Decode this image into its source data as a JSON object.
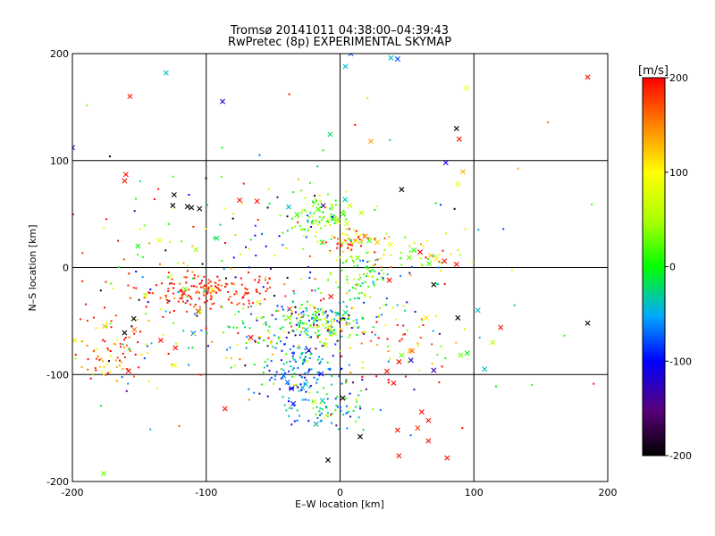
{
  "chart_data": {
    "type": "scatter",
    "title": "Tromsø 20141011 04:38:00–04:39:43",
    "subtitle": "RwPretec (8p) EXPERIMENTAL SKYMAP",
    "xlabel": "E–W location [km]",
    "ylabel": "N–S location [km]",
    "xlim": [
      -200,
      200
    ],
    "ylim": [
      -200,
      200
    ],
    "xticks": [
      -200,
      -100,
      0,
      100,
      200
    ],
    "yticks": [
      -200,
      -100,
      0,
      100,
      200
    ],
    "grid": true,
    "colorbar": {
      "label": "[m/s]",
      "range": [
        -200,
        200
      ],
      "ticks": [
        200,
        100,
        0,
        -100,
        -200
      ]
    },
    "marker_types": [
      "dot",
      "cross"
    ],
    "clusters": [
      {
        "cx": -95,
        "cy": -22,
        "sx": 28,
        "sy": 8,
        "n": 170,
        "v": 185,
        "vs": 20,
        "cross": 0.02
      },
      {
        "cx": -175,
        "cy": -85,
        "sx": 15,
        "sy": 15,
        "n": 70,
        "v": 160,
        "vs": 50,
        "cross": 0.05
      },
      {
        "cx": -55,
        "cy": -60,
        "sx": 35,
        "sy": 15,
        "n": 110,
        "v": 0,
        "vs": 100,
        "cross": 0.02
      },
      {
        "cx": -30,
        "cy": -95,
        "sx": 18,
        "sy": 15,
        "n": 130,
        "v": -60,
        "vs": 35,
        "cross": 0.03
      },
      {
        "cx": -15,
        "cy": -50,
        "sx": 20,
        "sy": 8,
        "n": 140,
        "v": 0,
        "vs": 80,
        "cross": 0.03
      },
      {
        "cx": 15,
        "cy": -8,
        "sx": 10,
        "sy": 15,
        "n": 80,
        "v": 10,
        "vs": 45,
        "cross": 0.03
      },
      {
        "cx": -15,
        "cy": 48,
        "sx": 12,
        "sy": 10,
        "n": 100,
        "v": 30,
        "vs": 40,
        "cross": 0.05
      },
      {
        "cx": 5,
        "cy": 25,
        "sx": 15,
        "sy": 6,
        "n": 70,
        "v": 120,
        "vs": 70,
        "cross": 0.04
      },
      {
        "cx": -10,
        "cy": -130,
        "sx": 20,
        "sy": 12,
        "n": 80,
        "v": -40,
        "vs": 60,
        "cross": 0.04
      },
      {
        "cx": 40,
        "cy": -60,
        "sx": 30,
        "sy": 25,
        "n": 90,
        "v": 100,
        "vs": 120,
        "cross": 0.1
      },
      {
        "cx": 60,
        "cy": 10,
        "sx": 25,
        "sy": 15,
        "n": 50,
        "v": 90,
        "vs": 100,
        "cross": 0.06
      },
      {
        "cx": -80,
        "cy": 20,
        "sx": 45,
        "sy": 35,
        "n": 80,
        "v": 0,
        "vs": 140,
        "cross": 0.04
      },
      {
        "cx": -150,
        "cy": -60,
        "sx": 35,
        "sy": 50,
        "n": 90,
        "v": 80,
        "vs": 130,
        "cross": 0.06
      },
      {
        "cx": 0,
        "cy": 0,
        "sx": 110,
        "sy": 110,
        "n": 80,
        "v": 30,
        "vs": 160,
        "cross": 0.2
      }
    ],
    "explicit_points": [
      {
        "x": -130,
        "y": 182,
        "v": -40,
        "m": "x"
      },
      {
        "x": -157,
        "y": 160,
        "v": 190,
        "m": "x"
      },
      {
        "x": 185,
        "y": 178,
        "v": 195,
        "m": "x"
      },
      {
        "x": 87,
        "y": 130,
        "v": -200,
        "m": "x"
      },
      {
        "x": 89,
        "y": 120,
        "v": 195,
        "m": "x"
      },
      {
        "x": 79,
        "y": 98,
        "v": -110,
        "m": "x"
      },
      {
        "x": 88,
        "y": 78,
        "v": 90,
        "m": "x"
      },
      {
        "x": 46,
        "y": 73,
        "v": -200,
        "m": "x"
      },
      {
        "x": 23,
        "y": 118,
        "v": 140,
        "m": "x"
      },
      {
        "x": 4,
        "y": 188,
        "v": -40,
        "m": "x"
      },
      {
        "x": 8,
        "y": 200,
        "v": -80,
        "m": "x"
      },
      {
        "x": 38,
        "y": 196,
        "v": -40,
        "m": "x"
      },
      {
        "x": 43,
        "y": 195,
        "v": -80,
        "m": "x"
      },
      {
        "x": -160,
        "y": 87,
        "v": 195,
        "m": "x"
      },
      {
        "x": -161,
        "y": 81,
        "v": 195,
        "m": "x"
      },
      {
        "x": -124,
        "y": 68,
        "v": -200,
        "m": "x"
      },
      {
        "x": -125,
        "y": 58,
        "v": -200,
        "m": "x"
      },
      {
        "x": -114,
        "y": 57,
        "v": -200,
        "m": "x"
      },
      {
        "x": -111,
        "y": 56,
        "v": -200,
        "m": "x"
      },
      {
        "x": -105,
        "y": 55,
        "v": -200,
        "m": "x"
      },
      {
        "x": -62,
        "y": 62,
        "v": 195,
        "m": "x"
      },
      {
        "x": -75,
        "y": 63,
        "v": 195,
        "m": "x"
      },
      {
        "x": -38,
        "y": 162,
        "v": 195,
        "m": "."
      },
      {
        "x": -172,
        "y": 104,
        "v": -200,
        "m": "."
      },
      {
        "x": 185,
        "y": -52,
        "v": -200,
        "m": "x"
      },
      {
        "x": 88,
        "y": -47,
        "v": -200,
        "m": "x"
      },
      {
        "x": 120,
        "y": -56,
        "v": 195,
        "m": "x"
      },
      {
        "x": 114,
        "y": -70,
        "v": 60,
        "m": "x"
      },
      {
        "x": 103,
        "y": -40,
        "v": -40,
        "m": "x"
      },
      {
        "x": 90,
        "y": -82,
        "v": 30,
        "m": "x"
      },
      {
        "x": 95,
        "y": -80,
        "v": 0,
        "m": "x"
      },
      {
        "x": 108,
        "y": -95,
        "v": -40,
        "m": "x"
      },
      {
        "x": 70,
        "y": -96,
        "v": -130,
        "m": "x"
      },
      {
        "x": 70,
        "y": -16,
        "v": -200,
        "m": "x"
      },
      {
        "x": 87,
        "y": 3,
        "v": 195,
        "m": "x"
      },
      {
        "x": 78,
        "y": 6,
        "v": 195,
        "m": "x"
      },
      {
        "x": 2,
        "y": -122,
        "v": -200,
        "m": "x"
      },
      {
        "x": -9,
        "y": -180,
        "v": -200,
        "m": "x"
      },
      {
        "x": 15,
        "y": -158,
        "v": -200,
        "m": "x"
      },
      {
        "x": 43,
        "y": -152,
        "v": 195,
        "m": "x"
      },
      {
        "x": 44,
        "y": -176,
        "v": 195,
        "m": "x"
      },
      {
        "x": 80,
        "y": -178,
        "v": 195,
        "m": "x"
      },
      {
        "x": 66,
        "y": -162,
        "v": 195,
        "m": "x"
      },
      {
        "x": 58,
        "y": -150,
        "v": 180,
        "m": "x"
      },
      {
        "x": 61,
        "y": -135,
        "v": 195,
        "m": "x"
      },
      {
        "x": 66,
        "y": -143,
        "v": 195,
        "m": "x"
      },
      {
        "x": -86,
        "y": -132,
        "v": 195,
        "m": "x"
      },
      {
        "x": -161,
        "y": -61,
        "v": -200,
        "m": "x"
      },
      {
        "x": -123,
        "y": -75,
        "v": 195,
        "m": "x"
      },
      {
        "x": -134,
        "y": -68,
        "v": 195,
        "m": "x"
      },
      {
        "x": 46,
        "y": -82,
        "v": 30,
        "m": "x"
      },
      {
        "x": 35,
        "y": -97,
        "v": 195,
        "m": "x"
      },
      {
        "x": 40,
        "y": -108,
        "v": 195,
        "m": "x"
      }
    ]
  }
}
